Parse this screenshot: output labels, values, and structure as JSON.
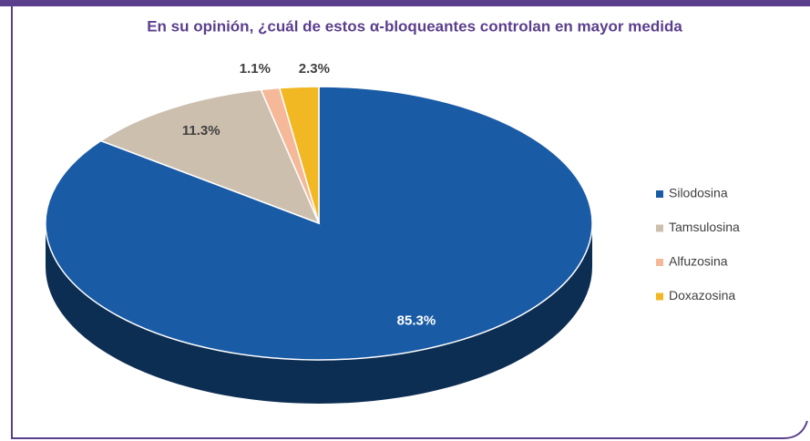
{
  "chart_data": {
    "type": "pie3d",
    "title": "En su opinión, ¿cuál de estos α-bloqueantes controlan en mayor medida",
    "categories": [
      "Silodosina",
      "Tamsulosina",
      "Alfuzosina",
      "Doxazosina"
    ],
    "values": [
      85.3,
      11.3,
      1.1,
      2.3
    ],
    "value_labels": [
      "85.3%",
      "11.3%",
      "1.1%",
      "2.3%"
    ],
    "colors": [
      "#1a5ba6",
      "#cdbfae",
      "#f5b99a",
      "#f2b824"
    ],
    "legend": "right"
  }
}
